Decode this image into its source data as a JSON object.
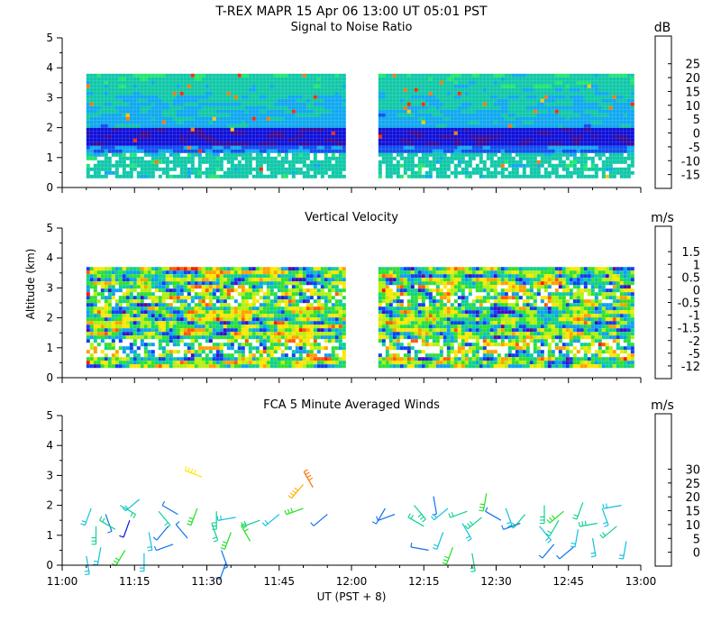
{
  "title": "T-REX  MAPR 15 Apr 06  13:00 UT  05:01  PST",
  "xlabel": "UT  (PST + 8)",
  "ylabel": "Altitude (km)",
  "chart_data": [
    {
      "type": "heatmap",
      "title": "Signal to Noise Ratio",
      "unit": "dB",
      "x_range_min": [
        0,
        120
      ],
      "y_range_km": [
        0,
        5
      ],
      "data_gap_min": [
        59,
        65
      ],
      "data_x_range_min": [
        5,
        118
      ],
      "data_top_km": 3.8,
      "data_bottom_km": 0.35,
      "colorbar": {
        "ticks": [
          "-15",
          "-10",
          "-5",
          "0",
          "5",
          "10",
          "15",
          "20",
          "25"
        ],
        "colors": [
          "#66ff22",
          "#22e66e",
          "#10c8a8",
          "#10a8f0",
          "#1050f0",
          "#1010d8",
          "#380a9c",
          "#4a1060",
          "#ff2a00",
          "#ff7a00",
          "#ffc800"
        ]
      }
    },
    {
      "type": "heatmap",
      "title": "Vertical Velocity",
      "unit": "m/s",
      "x_range_min": [
        0,
        120
      ],
      "y_range_km": [
        0,
        5
      ],
      "data_gap_min": [
        59,
        65
      ],
      "data_x_range_min": [
        5,
        118
      ],
      "data_top_km": 3.7,
      "data_bottom_km": 0.35,
      "colorbar": {
        "ticks": [
          "-12",
          "-5",
          "-2",
          "-1.5",
          "-1",
          "-0.5",
          "0",
          "0.5",
          "1",
          "1.5"
        ],
        "colors": [
          "#2a0c34",
          "#6a0a8a",
          "#3a10c8",
          "#1040f0",
          "#10a0f0",
          "#10d090",
          "#30e030",
          "#b4f010",
          "#ffe600",
          "#ffa000",
          "#ff5a00",
          "#ff1a00"
        ]
      }
    },
    {
      "type": "scatter",
      "title": "FCA 5 Minute Averaged Winds",
      "unit": "m/s",
      "x_range_min": [
        0,
        120
      ],
      "y_range_km": [
        0,
        5
      ],
      "colorbar": {
        "ticks": [
          "0",
          "5",
          "10",
          "15",
          "20",
          "25",
          "30"
        ],
        "colors": [
          "#3a0c7a",
          "#1010e0",
          "#1070f0",
          "#10c0e0",
          "#10d090",
          "#20e020",
          "#a0f010",
          "#ffe800",
          "#ffb000",
          "#ff7000",
          "#ff2000"
        ]
      },
      "barbs": [
        {
          "t": 29,
          "alt": 2.95,
          "dir": 290,
          "speed": 22
        },
        {
          "t": 52,
          "alt": 2.6,
          "dir": 330,
          "speed": 27
        },
        {
          "t": 50,
          "alt": 2.7,
          "dir": 220,
          "speed": 24
        },
        {
          "t": 6,
          "alt": 1.9,
          "dir": 200,
          "speed": 8
        },
        {
          "t": 9,
          "alt": 1.7,
          "dir": 160,
          "speed": 6
        },
        {
          "t": 12,
          "alt": 2.0,
          "dir": 120,
          "speed": 11
        },
        {
          "t": 16,
          "alt": 2.2,
          "dir": 230,
          "speed": 9
        },
        {
          "t": 20,
          "alt": 1.8,
          "dir": 140,
          "speed": 12
        },
        {
          "t": 24,
          "alt": 1.7,
          "dir": 300,
          "speed": 7
        },
        {
          "t": 28,
          "alt": 1.9,
          "dir": 200,
          "speed": 15
        },
        {
          "t": 32,
          "alt": 1.8,
          "dir": 180,
          "speed": 13
        },
        {
          "t": 36,
          "alt": 1.6,
          "dir": 260,
          "speed": 10
        },
        {
          "t": 41,
          "alt": 1.5,
          "dir": 250,
          "speed": 11
        },
        {
          "t": 45,
          "alt": 1.7,
          "dir": 230,
          "speed": 9
        },
        {
          "t": 50,
          "alt": 1.9,
          "dir": 250,
          "speed": 16
        },
        {
          "t": 55,
          "alt": 1.7,
          "dir": 230,
          "speed": 7
        },
        {
          "t": 7,
          "alt": 1.3,
          "dir": 180,
          "speed": 13
        },
        {
          "t": 11,
          "alt": 1.2,
          "dir": 300,
          "speed": 11
        },
        {
          "t": 14,
          "alt": 1.5,
          "dir": 200,
          "speed": 4
        },
        {
          "t": 18,
          "alt": 1.1,
          "dir": 170,
          "speed": 8
        },
        {
          "t": 22,
          "alt": 1.3,
          "dir": 220,
          "speed": 6
        },
        {
          "t": 26,
          "alt": 0.9,
          "dir": 320,
          "speed": 5
        },
        {
          "t": 31,
          "alt": 1.4,
          "dir": 160,
          "speed": 12
        },
        {
          "t": 35,
          "alt": 1.1,
          "dir": 200,
          "speed": 14
        },
        {
          "t": 39,
          "alt": 0.8,
          "dir": 330,
          "speed": 15
        },
        {
          "t": 8,
          "alt": 0.6,
          "dir": 190,
          "speed": 10
        },
        {
          "t": 13,
          "alt": 0.5,
          "dir": 210,
          "speed": 14
        },
        {
          "t": 17,
          "alt": 0.4,
          "dir": 180,
          "speed": 9
        },
        {
          "t": 23,
          "alt": 0.7,
          "dir": 250,
          "speed": 5
        },
        {
          "t": 33,
          "alt": 0.5,
          "dir": 160,
          "speed": 6
        },
        {
          "t": 34,
          "alt": 0.1,
          "dir": 200,
          "speed": 7
        },
        {
          "t": 5,
          "alt": 0.3,
          "dir": 170,
          "speed": 9
        },
        {
          "t": 67,
          "alt": 1.9,
          "dir": 210,
          "speed": 6
        },
        {
          "t": 69,
          "alt": 1.7,
          "dir": 250,
          "speed": 5
        },
        {
          "t": 73,
          "alt": 2.0,
          "dir": 140,
          "speed": 13
        },
        {
          "t": 77,
          "alt": 2.3,
          "dir": 170,
          "speed": 7
        },
        {
          "t": 80,
          "alt": 1.9,
          "dir": 230,
          "speed": 10
        },
        {
          "t": 84,
          "alt": 1.8,
          "dir": 250,
          "speed": 12
        },
        {
          "t": 88,
          "alt": 2.4,
          "dir": 190,
          "speed": 15
        },
        {
          "t": 92,
          "alt": 1.9,
          "dir": 160,
          "speed": 8
        },
        {
          "t": 96,
          "alt": 1.7,
          "dir": 220,
          "speed": 11
        },
        {
          "t": 100,
          "alt": 2.0,
          "dir": 180,
          "speed": 13
        },
        {
          "t": 104,
          "alt": 1.8,
          "dir": 230,
          "speed": 14
        },
        {
          "t": 108,
          "alt": 2.1,
          "dir": 200,
          "speed": 12
        },
        {
          "t": 112,
          "alt": 1.9,
          "dir": 160,
          "speed": 10
        },
        {
          "t": 116,
          "alt": 2.0,
          "dir": 260,
          "speed": 9
        },
        {
          "t": 75,
          "alt": 1.3,
          "dir": 300,
          "speed": 11
        },
        {
          "t": 79,
          "alt": 1.1,
          "dir": 200,
          "speed": 8
        },
        {
          "t": 83,
          "alt": 1.4,
          "dir": 150,
          "speed": 9
        },
        {
          "t": 87,
          "alt": 1.6,
          "dir": 230,
          "speed": 13
        },
        {
          "t": 91,
          "alt": 1.5,
          "dir": 300,
          "speed": 7
        },
        {
          "t": 95,
          "alt": 1.4,
          "dir": 250,
          "speed": 6
        },
        {
          "t": 99,
          "alt": 1.3,
          "dir": 140,
          "speed": 9
        },
        {
          "t": 103,
          "alt": 1.5,
          "dir": 210,
          "speed": 11
        },
        {
          "t": 107,
          "alt": 1.2,
          "dir": 190,
          "speed": 8
        },
        {
          "t": 111,
          "alt": 1.4,
          "dir": 260,
          "speed": 13
        },
        {
          "t": 115,
          "alt": 1.3,
          "dir": 230,
          "speed": 12
        },
        {
          "t": 81,
          "alt": 0.6,
          "dir": 200,
          "speed": 14
        },
        {
          "t": 85,
          "alt": 0.4,
          "dir": 170,
          "speed": 12
        },
        {
          "t": 76,
          "alt": 0.5,
          "dir": 280,
          "speed": 5
        },
        {
          "t": 102,
          "alt": 0.7,
          "dir": 220,
          "speed": 6
        },
        {
          "t": 106,
          "alt": 0.6,
          "dir": 230,
          "speed": 7
        },
        {
          "t": 110,
          "alt": 0.9,
          "dir": 170,
          "speed": 8
        },
        {
          "t": 117,
          "alt": 0.8,
          "dir": 190,
          "speed": 10
        }
      ]
    }
  ],
  "panels_axes": {
    "y_ticks": [
      "0",
      "1",
      "2",
      "3",
      "4",
      "5"
    ],
    "x_ticks": [
      "11:00",
      "11:15",
      "11:30",
      "11:45",
      "12:00",
      "12:15",
      "12:30",
      "12:45",
      "13:00"
    ]
  }
}
